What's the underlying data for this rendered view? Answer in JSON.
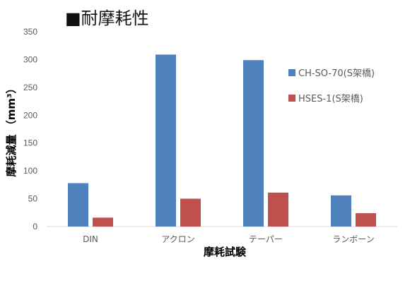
{
  "page": {
    "title": "■耐摩耗性"
  },
  "chart_data": {
    "type": "bar",
    "title": "",
    "xlabel": "摩耗試験",
    "ylabel": "摩耗減量 （mm³）",
    "categories": [
      "DIN",
      "アクロン",
      "テーパー",
      "ランボーン"
    ],
    "series": [
      {
        "name": "CH-SO-70(S架橋)",
        "color": "#4f81bd",
        "values": [
          78,
          309,
          299,
          56
        ]
      },
      {
        "name": "HSES-1(S架橋)",
        "color": "#c0504d",
        "values": [
          16,
          50,
          61,
          24
        ]
      }
    ],
    "ylim": [
      0,
      350
    ],
    "yticks": [
      0,
      50,
      100,
      150,
      200,
      250,
      300,
      350
    ],
    "grid": false,
    "legend_position": "right"
  }
}
